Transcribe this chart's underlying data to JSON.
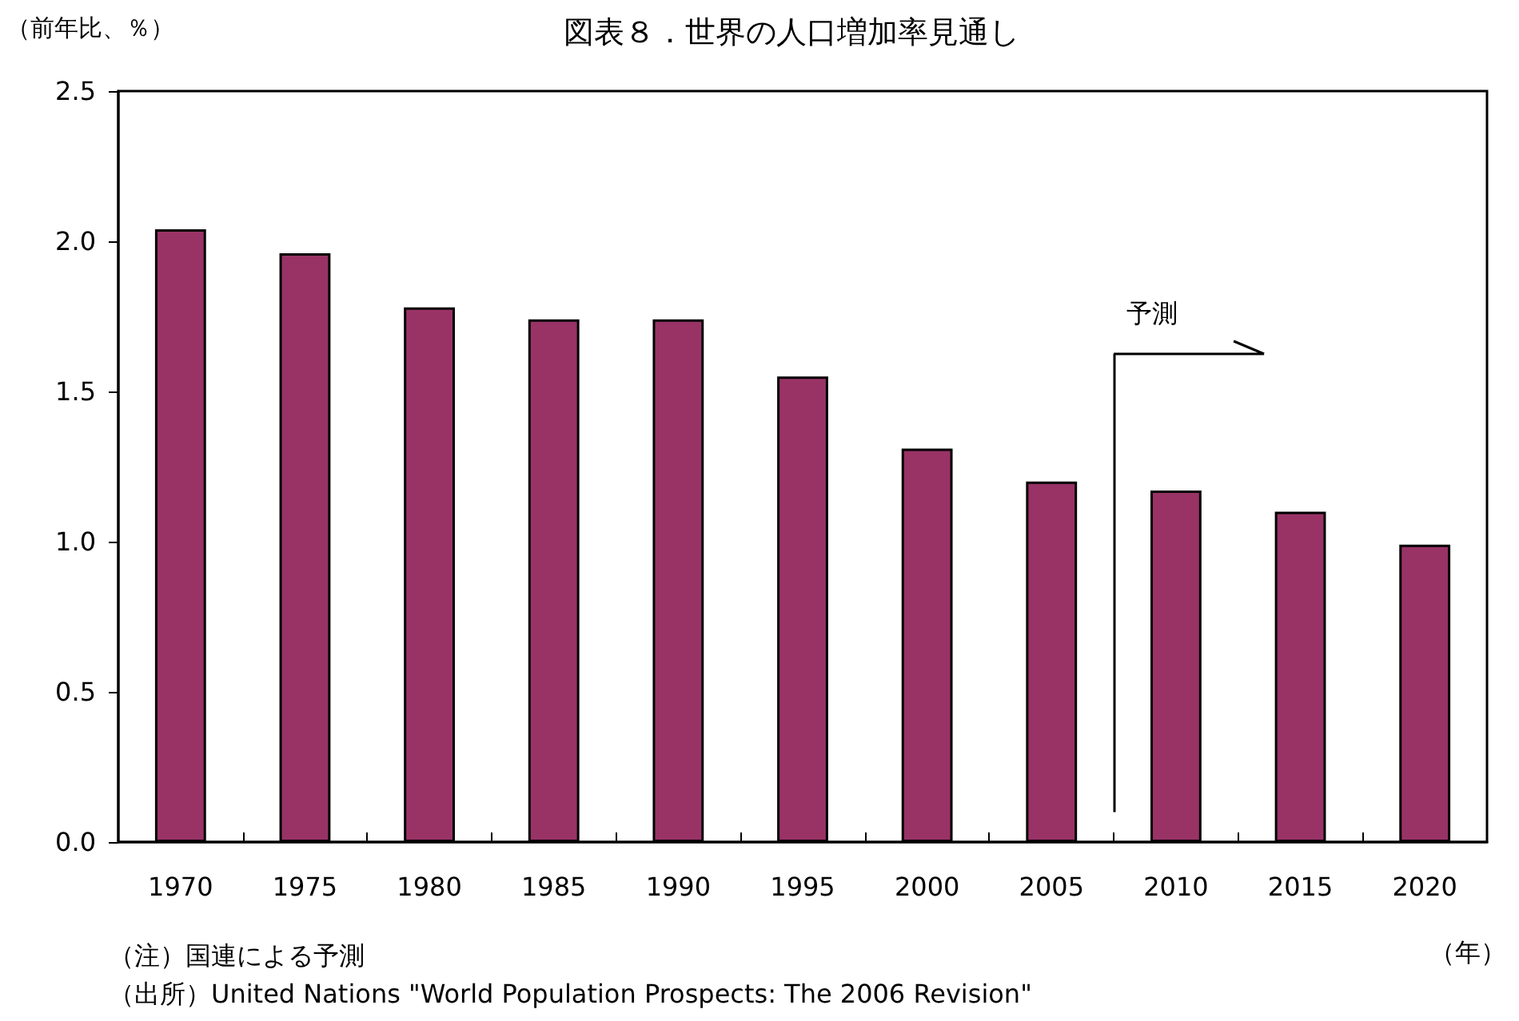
{
  "chart_data": {
    "type": "bar",
    "title": "図表８．世界の人口増加率見通し",
    "ylabel": "（前年比、％）",
    "xlabel": "（年）",
    "x": [
      1970,
      1975,
      1980,
      1985,
      1990,
      1995,
      2000,
      2005,
      2010,
      2015,
      2020
    ],
    "values": [
      2.04,
      1.96,
      1.78,
      1.74,
      1.74,
      1.55,
      1.31,
      1.2,
      1.17,
      1.1,
      0.99
    ],
    "color": "#993366",
    "xlim": [
      1967.5,
      2022.5
    ],
    "xticks": [
      1970,
      1975,
      1980,
      1985,
      1990,
      1995,
      2000,
      2005,
      2010,
      2015,
      2020,
      {
        "value": 1972.5,
        "label": null
      },
      {
        "value": 1977.5,
        "label": null
      },
      {
        "value": 1982.5,
        "label": null
      },
      {
        "value": 1987.5,
        "label": null
      },
      {
        "value": 1992.5,
        "label": null
      },
      {
        "value": 1997.5,
        "label": null
      },
      {
        "value": 2002.5,
        "label": null
      },
      {
        "value": 2007.5,
        "label": null
      },
      {
        "value": 2012.5,
        "label": null
      },
      {
        "value": 2017.5,
        "label": null
      }
    ],
    "ylim": [
      0,
      2.5
    ],
    "yticks": [
      {
        "value": 0,
        "label": "0.0"
      },
      {
        "value": 0.5,
        "label": "0.5"
      },
      {
        "value": 1,
        "label": "1.0"
      },
      {
        "value": 1.5,
        "label": "1.5"
      },
      {
        "value": 2,
        "label": "2.0"
      },
      {
        "value": 2.5,
        "label": "2.5"
      }
    ],
    "grid": false,
    "ref_lines": [
      {
        "axis": "x",
        "value": 2007.5,
        "label": "予測",
        "color": "#000000"
      }
    ],
    "annotations": [
      "（注）国連による予測",
      "（出所）United Nations \"World Population Prospects: The 2006 Revision\""
    ]
  }
}
